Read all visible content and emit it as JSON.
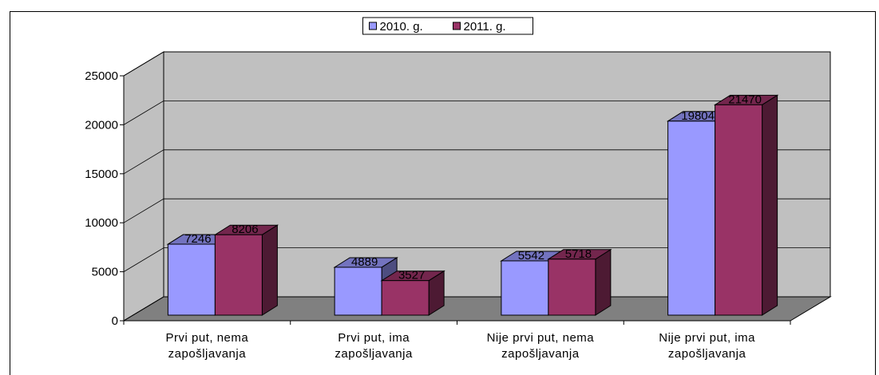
{
  "chart_data": {
    "type": "bar3d",
    "categories": [
      "Prvi put, nema zapošljavanja",
      "Prvi put, ima zapošljavanja",
      "Nije prvi put, nema zapošljavanja",
      "Nije prvi put, ima zapošljavanja"
    ],
    "series": [
      {
        "name": "2010. g.",
        "color": "#9999ff",
        "values": [
          7246,
          4889,
          5542,
          19804
        ]
      },
      {
        "name": "2011. g.",
        "color": "#993366",
        "values": [
          8206,
          3527,
          5718,
          21470
        ]
      }
    ],
    "ylim": [
      0,
      25000
    ],
    "yticks": [
      0,
      5000,
      10000,
      15000,
      20000,
      25000
    ],
    "grid": true,
    "legend": "top"
  }
}
